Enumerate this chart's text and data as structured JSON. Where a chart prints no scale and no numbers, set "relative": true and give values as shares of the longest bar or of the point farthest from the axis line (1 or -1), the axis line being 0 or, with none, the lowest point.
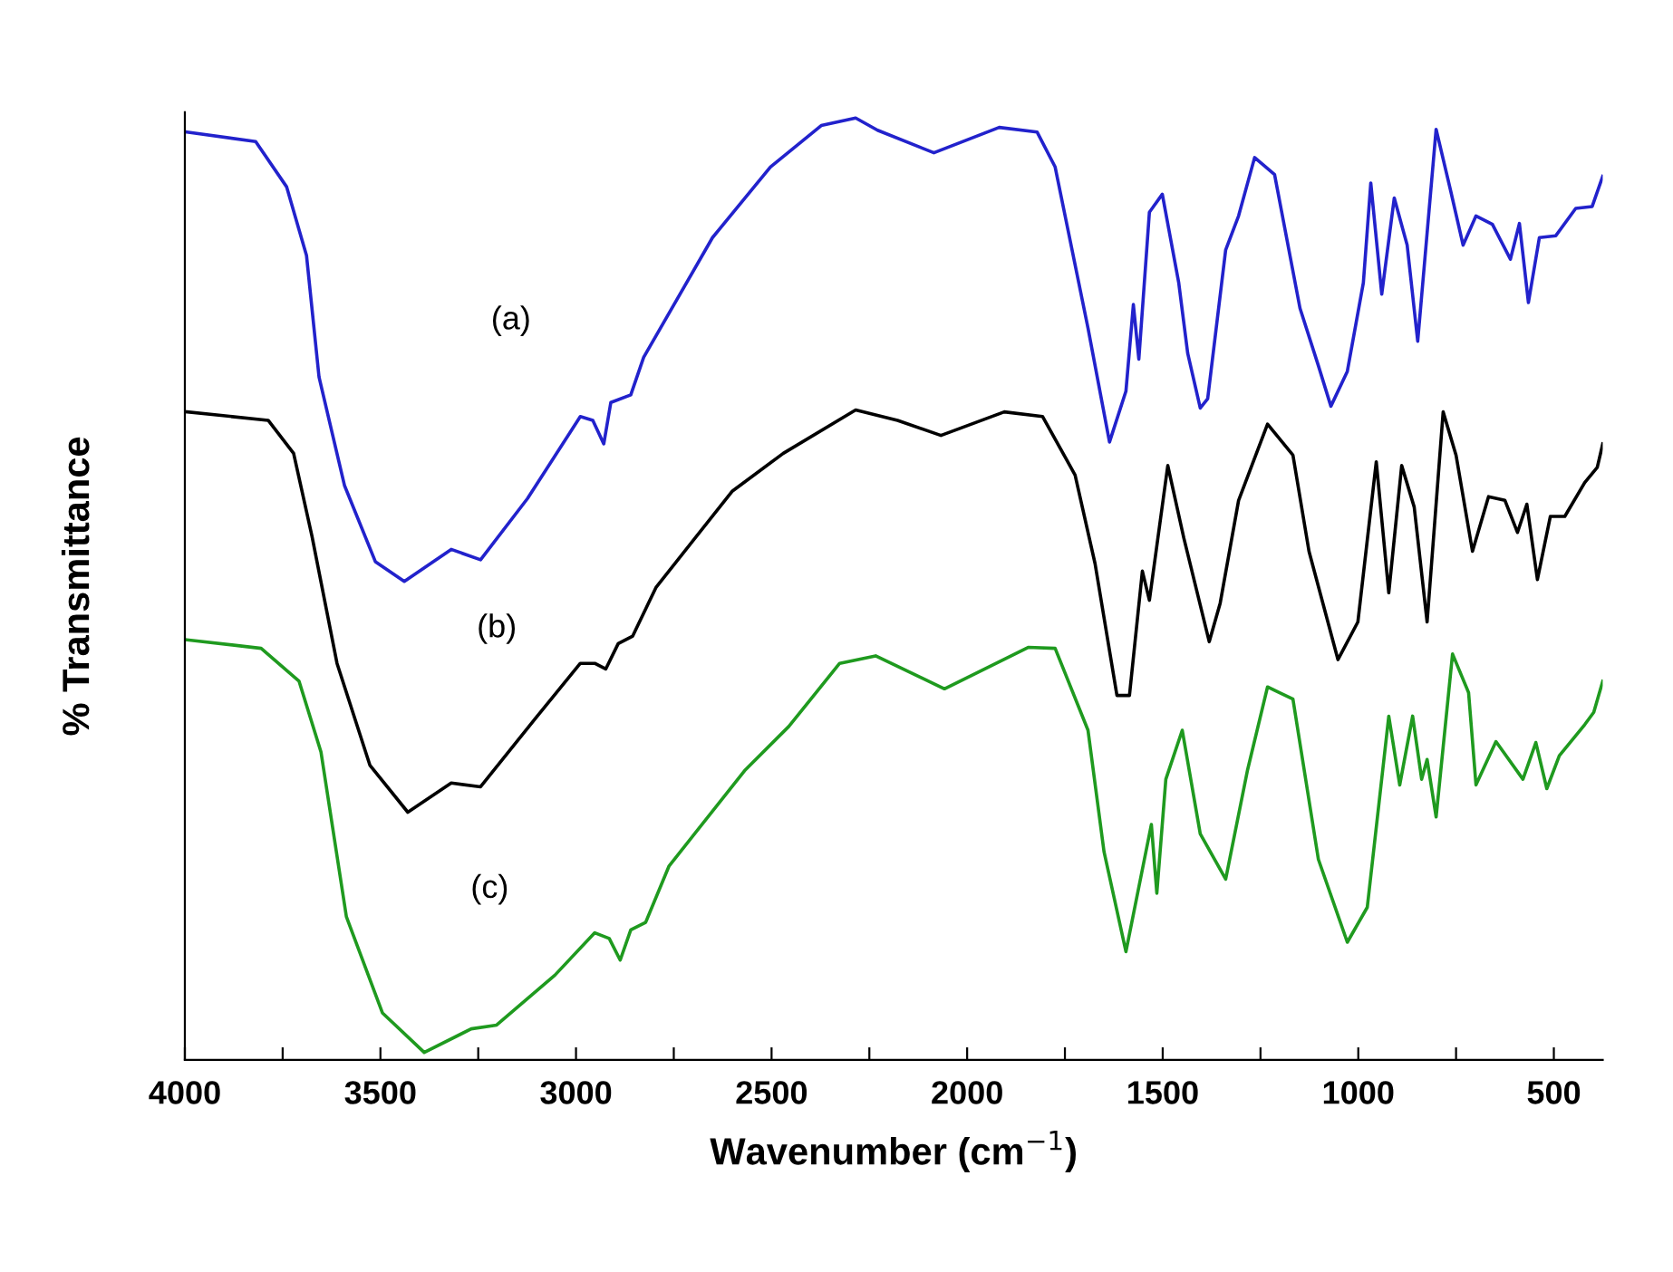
{
  "chart_data": {
    "type": "line",
    "relative": true,
    "xlabel": "Wavenumber (cm$^{−1}$)",
    "ylabel": "% Transmittance",
    "xlim": [
      4000,
      375
    ],
    "xticks": [
      4000,
      {
        "value": 3750,
        "label": null
      },
      3500,
      {
        "value": 3250,
        "label": null
      },
      3000,
      {
        "value": 2750,
        "label": null
      },
      2500,
      {
        "value": 2250,
        "label": null
      },
      2000,
      {
        "value": 1750,
        "label": null
      },
      1500,
      {
        "value": 1250,
        "label": null
      },
      1000,
      {
        "value": 750,
        "label": null
      },
      500
    ],
    "grid": false,
    "legend": false,
    "marker": "none",
    "line_style": "solid",
    "series": [
      {
        "name": "(a)",
        "color": "#2222cc",
        "x": [
          3995,
          3819,
          3740,
          3689,
          3657,
          3592,
          3513,
          3439,
          3365,
          3319,
          3244,
          3124,
          2989,
          2957,
          2929,
          2911,
          2860,
          2827,
          2651,
          2503,
          2373,
          2285,
          2229,
          2085,
          1918,
          1821,
          1775,
          1691,
          1636,
          1594,
          1575,
          1561,
          1534,
          1501,
          1459,
          1436,
          1404,
          1385,
          1339,
          1306,
          1265,
          1214,
          1149,
          1102,
          1070,
          1028,
          987,
          968,
          940,
          908,
          875,
          848,
          801,
          764,
          732,
          699,
          657,
          611,
          588,
          565,
          537,
          495,
          444,
          402,
          375
        ],
        "values": [
          0.985,
          0.975,
          0.927,
          0.854,
          0.725,
          0.61,
          0.529,
          0.508,
          0.529,
          0.542,
          0.531,
          0.596,
          0.683,
          0.679,
          0.654,
          0.698,
          0.706,
          0.746,
          0.873,
          0.948,
          0.992,
          1,
          0.987,
          0.963,
          0.99,
          0.985,
          0.948,
          0.777,
          0.656,
          0.71,
          0.802,
          0.744,
          0.9,
          0.919,
          0.825,
          0.75,
          0.692,
          0.702,
          0.86,
          0.896,
          0.958,
          0.94,
          0.798,
          0.737,
          0.694,
          0.731,
          0.825,
          0.931,
          0.813,
          0.915,
          0.865,
          0.763,
          0.988,
          0.923,
          0.865,
          0.896,
          0.887,
          0.85,
          0.888,
          0.804,
          0.873,
          0.875,
          0.904,
          0.906,
          0.938
        ]
      },
      {
        "name": "(b)",
        "color": "#000000",
        "x": [
          3995,
          3787,
          3722,
          3675,
          3611,
          3527,
          3430,
          3319,
          3244,
          3105,
          2989,
          2952,
          2924,
          2892,
          2855,
          2795,
          2600,
          2470,
          2285,
          2178,
          2067,
          1905,
          1807,
          1724,
          1673,
          1617,
          1585,
          1552,
          1534,
          1487,
          1446,
          1381,
          1353,
          1306,
          1232,
          1167,
          1126,
          1052,
          1001,
          954,
          922,
          889,
          857,
          824,
          783,
          750,
          708,
          667,
          625,
          593,
          569,
          542,
          509,
          472,
          421,
          389,
          375
        ],
        "values": [
          0.688,
          0.679,
          0.644,
          0.556,
          0.421,
          0.313,
          0.263,
          0.294,
          0.29,
          0.362,
          0.421,
          0.421,
          0.415,
          0.442,
          0.45,
          0.502,
          0.604,
          0.644,
          0.69,
          0.679,
          0.663,
          0.688,
          0.683,
          0.621,
          0.527,
          0.387,
          0.387,
          0.519,
          0.488,
          0.631,
          0.554,
          0.444,
          0.485,
          0.594,
          0.675,
          0.642,
          0.54,
          0.425,
          0.465,
          0.635,
          0.496,
          0.631,
          0.587,
          0.465,
          0.688,
          0.642,
          0.54,
          0.598,
          0.594,
          0.56,
          0.59,
          0.51,
          0.577,
          0.577,
          0.613,
          0.629,
          0.654
        ]
      },
      {
        "name": "(c)",
        "color": "#1f9a1f",
        "x": [
          3995,
          3805,
          3708,
          3652,
          3587,
          3495,
          3388,
          3268,
          3203,
          3054,
          2952,
          2915,
          2887,
          2860,
          2822,
          2762,
          2567,
          2456,
          2326,
          2234,
          2058,
          1844,
          1775,
          1691,
          1650,
          1594,
          1529,
          1515,
          1492,
          1450,
          1404,
          1339,
          1283,
          1232,
          1167,
          1102,
          1028,
          977,
          922,
          894,
          861,
          838,
          824,
          801,
          759,
          718,
          699,
          648,
          579,
          546,
          518,
          486,
          421,
          398,
          375
        ],
        "values": [
          0.446,
          0.437,
          0.402,
          0.327,
          0.152,
          0.05,
          0.008,
          0.033,
          0.037,
          0.09,
          0.135,
          0.129,
          0.106,
          0.138,
          0.146,
          0.206,
          0.308,
          0.354,
          0.421,
          0.429,
          0.394,
          0.438,
          0.437,
          0.35,
          0.221,
          0.115,
          0.25,
          0.177,
          0.298,
          0.35,
          0.24,
          0.192,
          0.308,
          0.396,
          0.383,
          0.213,
          0.125,
          0.162,
          0.365,
          0.292,
          0.365,
          0.298,
          0.319,
          0.258,
          0.431,
          0.39,
          0.292,
          0.338,
          0.298,
          0.337,
          0.288,
          0.323,
          0.356,
          0.369,
          0.402
        ]
      }
    ]
  }
}
